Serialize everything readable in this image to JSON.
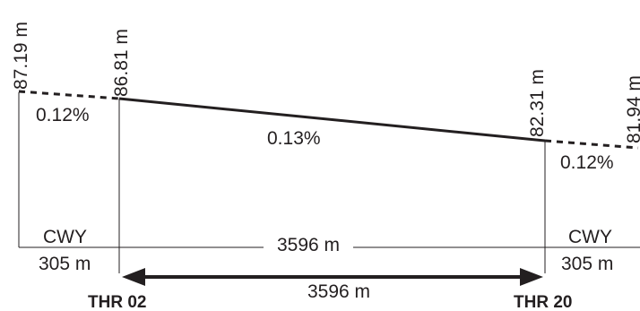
{
  "runway_profile": {
    "elevations": {
      "cwy_west_end": "87.19 m",
      "thr02": "86.81 m",
      "thr20": "82.31 m",
      "cwy_east_end": "81.94 m"
    },
    "slopes": {
      "cwy_west": "0.12%",
      "runway": "0.13%",
      "cwy_east": "0.12%"
    },
    "clearways": {
      "west_label": "CWY",
      "west_length": "305 m",
      "east_label": "CWY",
      "east_length": "305 m"
    },
    "runway_length_top": "3596 m",
    "runway_length_arrow": "3596 m",
    "thresholds": {
      "west": "THR 02",
      "east": "THR 20"
    }
  }
}
